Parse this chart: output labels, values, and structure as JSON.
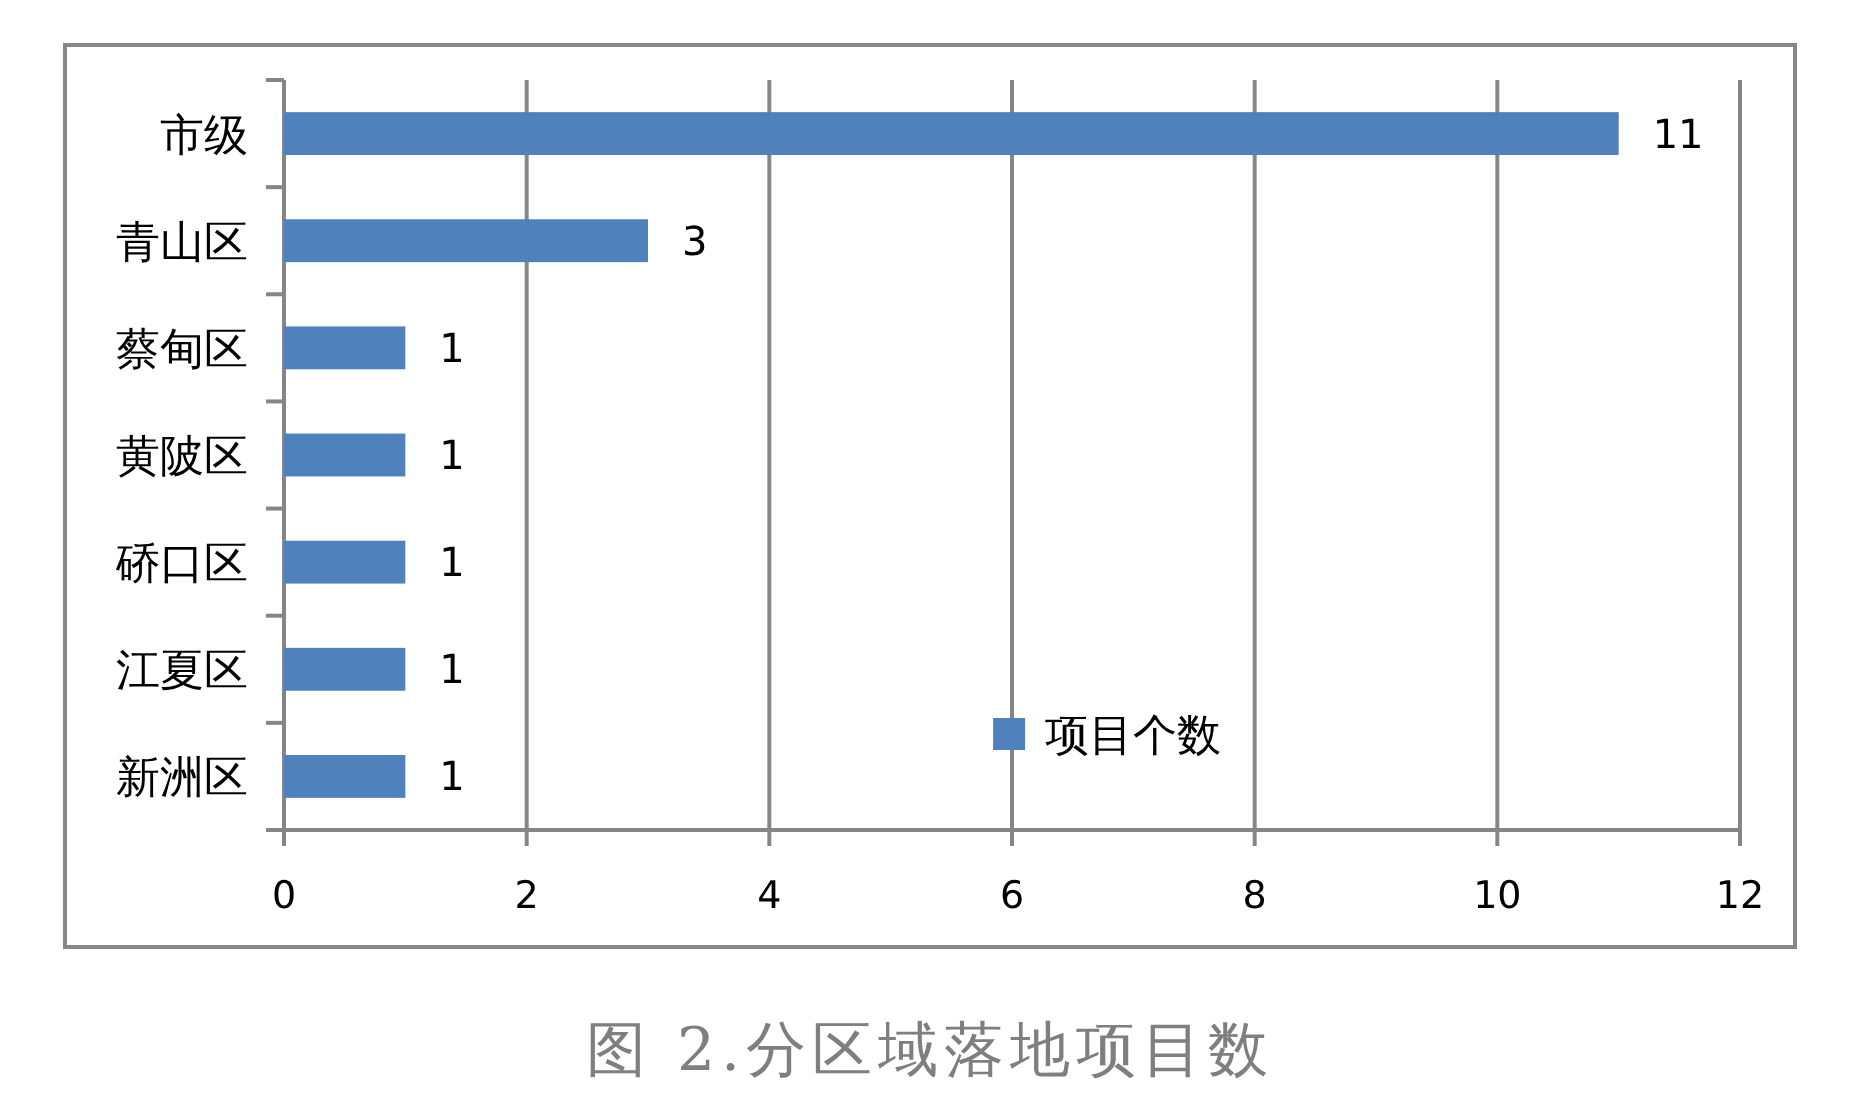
{
  "chart_data": {
    "type": "bar",
    "orientation": "horizontal",
    "categories": [
      "市级",
      "青山区",
      "蔡甸区",
      "黄陂区",
      "硚口区",
      "江夏区",
      "新洲区"
    ],
    "series": [
      {
        "name": "项目个数",
        "color": "#4f81bd",
        "values": [
          11,
          3,
          1,
          1,
          1,
          1,
          1
        ]
      }
    ],
    "xlim": [
      0,
      12
    ],
    "xticks": [
      0,
      2,
      4,
      6,
      8,
      10,
      12
    ],
    "grid": "x",
    "legend": "bottom",
    "data_labels": true,
    "annotations": [
      "图 2.分区域落地项目数"
    ]
  }
}
